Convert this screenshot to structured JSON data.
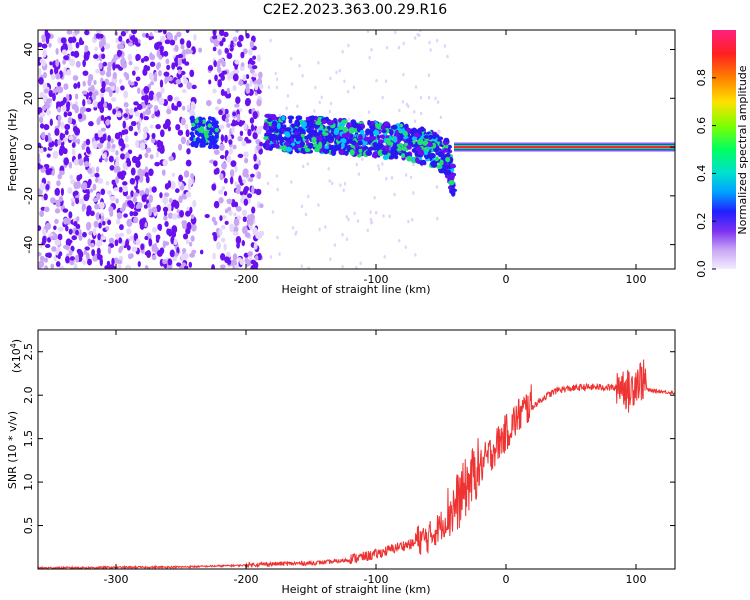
{
  "title": "C2E2.2023.363.00.29.R16",
  "colors": {
    "snr_line": "#ee3333",
    "spec_purple": "#6a10f0",
    "spec_light": "#c9a6f4",
    "spec_green": "#1fe070",
    "spec_red": "#ff2020"
  },
  "chart_data": [
    {
      "type": "heatmap",
      "xlabel": "Height of straight line (km)",
      "ylabel": "Frequency (Hz)",
      "xlim": [
        -360,
        130
      ],
      "ylim": [
        -50,
        48
      ],
      "xticks": [
        -300,
        -200,
        -100,
        0,
        100
      ],
      "yticks": [
        -40,
        -20,
        0,
        20,
        40
      ],
      "colorbar": {
        "label": "Normalized spectral amplitude",
        "range": [
          0.0,
          1.0
        ],
        "ticks": [
          "0.0",
          "0.2",
          "0.4",
          "0.6",
          "0.8"
        ],
        "colormap": [
          "#f4ecff",
          "#c9a6f4",
          "#7a30f0",
          "#2020ff",
          "#00a0ff",
          "#00e0d0",
          "#00ff60",
          "#80ff00",
          "#ffe000",
          "#ff8000",
          "#ff2020",
          "#ff2080"
        ]
      },
      "features": {
        "noise_region_x": [
          -360,
          -188
        ],
        "gap_x": [
          -240,
          -225
        ],
        "echo_track": [
          {
            "x": -185,
            "y": 6
          },
          {
            "x": -160,
            "y": 5
          },
          {
            "x": -140,
            "y": 5
          },
          {
            "x": -120,
            "y": 4
          },
          {
            "x": -100,
            "y": 3
          },
          {
            "x": -80,
            "y": 2
          },
          {
            "x": -60,
            "y": 0
          },
          {
            "x": -45,
            "y": -4
          },
          {
            "x": -40,
            "y": -15
          }
        ],
        "carrier_line": {
          "y": 0,
          "x_from": -40,
          "x_to": 130,
          "amplitude": 1.0
        }
      }
    },
    {
      "type": "line",
      "xlabel": "Height of straight line (km)",
      "ylabel": "SNR (10 * v/v)",
      "ylabel_scale": "(x10",
      "ylabel_exp": "4",
      "xlim": [
        -360,
        130
      ],
      "ylim": [
        0,
        2.75
      ],
      "xticks": [
        -300,
        -200,
        -100,
        0,
        100
      ],
      "yticks": [
        "0.5",
        "1.0",
        "1.5",
        "2.0",
        "2.5"
      ],
      "series": [
        {
          "x": [
            -360,
            -250,
            -200,
            -180,
            -150,
            -130,
            -110,
            -100,
            -80,
            -60,
            -50,
            -40,
            -30,
            -20,
            -10,
            0,
            10,
            20,
            30,
            40,
            60,
            80,
            90,
            95,
            100,
            105,
            110,
            130
          ],
          "y": [
            0.01,
            0.02,
            0.04,
            0.05,
            0.06,
            0.08,
            0.12,
            0.15,
            0.25,
            0.3,
            0.45,
            0.6,
            0.85,
            1.1,
            1.3,
            1.5,
            1.7,
            1.85,
            1.97,
            2.05,
            2.08,
            2.08,
            2.05,
            1.95,
            2.1,
            2.1,
            2.05,
            2.02
          ]
        }
      ]
    }
  ]
}
